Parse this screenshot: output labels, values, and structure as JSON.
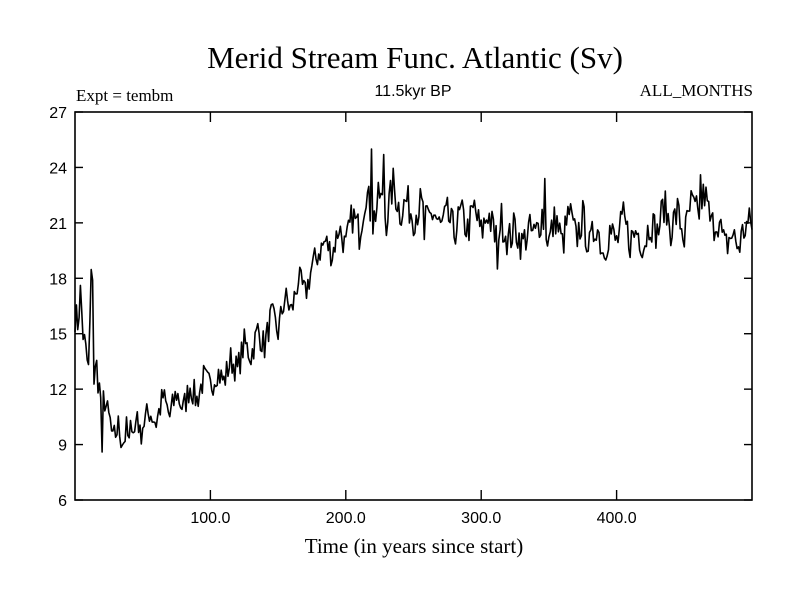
{
  "chart_data": {
    "type": "line",
    "title": "Merid Stream Func. Atlantic (Sv)",
    "subtitle": "11.5kyr BP",
    "annotation_left": "Expt = tembm",
    "annotation_right": "ALL_MONTHS",
    "xlabel": "Time (in years since start)",
    "ylabel": "",
    "xlim": [
      0,
      500
    ],
    "ylim": [
      6,
      27
    ],
    "xticks": [
      100,
      200,
      300,
      400
    ],
    "xtick_labels": [
      "100.0",
      "200.0",
      "300.0",
      "400.0"
    ],
    "yticks": [
      6,
      9,
      12,
      15,
      18,
      21,
      24,
      27
    ],
    "ytick_labels": [
      "6",
      "9",
      "12",
      "15",
      "18",
      "21",
      "24",
      "27"
    ],
    "grid": false,
    "series": [
      {
        "name": "Merid Stream Func. Atlantic",
        "color": "#000000",
        "x": [
          0,
          2,
          4,
          6,
          8,
          10,
          12,
          14,
          16,
          18,
          20,
          22,
          24,
          26,
          28,
          30,
          32,
          34,
          36,
          38,
          40,
          42,
          44,
          46,
          48,
          50,
          55,
          60,
          65,
          70,
          75,
          80,
          85,
          90,
          95,
          100,
          105,
          110,
          115,
          120,
          125,
          130,
          135,
          140,
          145,
          150,
          155,
          160,
          165,
          170,
          175,
          180,
          185,
          190,
          195,
          200,
          205,
          210,
          215,
          220,
          225,
          230,
          235,
          240,
          245,
          250,
          255,
          260,
          265,
          270,
          275,
          280,
          285,
          290,
          295,
          300,
          305,
          310,
          315,
          320,
          325,
          330,
          335,
          340,
          345,
          350,
          355,
          360,
          365,
          370,
          375,
          380,
          385,
          390,
          395,
          400,
          405,
          410,
          415,
          420,
          425,
          430,
          435,
          440,
          445,
          450,
          455,
          460,
          465,
          470,
          475,
          480,
          485,
          490,
          495,
          500
        ],
        "values": [
          16.0,
          15.6,
          17.2,
          15.0,
          14.0,
          13.0,
          17.9,
          12.5,
          13.2,
          12.0,
          11.2,
          11.5,
          10.6,
          10.2,
          9.0,
          9.6,
          10.0,
          9.4,
          9.2,
          9.8,
          9.0,
          10.4,
          9.6,
          10.9,
          9.4,
          10.1,
          10.8,
          10.2,
          11.6,
          10.5,
          11.8,
          10.9,
          12.2,
          11.4,
          12.6,
          12.1,
          13.0,
          12.4,
          13.6,
          13.0,
          14.5,
          13.8,
          15.2,
          14.3,
          16.0,
          15.1,
          17.0,
          16.2,
          18.0,
          17.1,
          18.6,
          19.4,
          20.0,
          19.3,
          20.8,
          19.6,
          21.4,
          20.5,
          22.8,
          21.0,
          22.5,
          21.2,
          23.1,
          21.6,
          22.2,
          21.3,
          22.0,
          21.0,
          21.6,
          20.7,
          21.4,
          20.5,
          21.5,
          20.6,
          21.8,
          20.4,
          21.6,
          20.3,
          21.2,
          20.0,
          20.8,
          19.8,
          20.6,
          20.3,
          21.5,
          20.0,
          21.3,
          19.8,
          21.6,
          20.1,
          21.3,
          19.6,
          21.0,
          19.4,
          20.6,
          19.9,
          21.2,
          20.0,
          20.6,
          19.8,
          21.1,
          20.4,
          22.0,
          20.7,
          21.6,
          20.2,
          22.0,
          21.4,
          22.6,
          20.8,
          21.2,
          19.6,
          20.4,
          19.7,
          20.8,
          21.0
        ],
        "peaks": [
          [
            13,
            17.9
          ],
          [
            219,
            25.0
          ],
          [
            228,
            24.7
          ],
          [
            347,
            23.4
          ],
          [
            462,
            23.6
          ],
          [
            20,
            8.6
          ],
          [
            258,
            20.1
          ],
          [
            312,
            18.5
          ]
        ]
      }
    ]
  }
}
